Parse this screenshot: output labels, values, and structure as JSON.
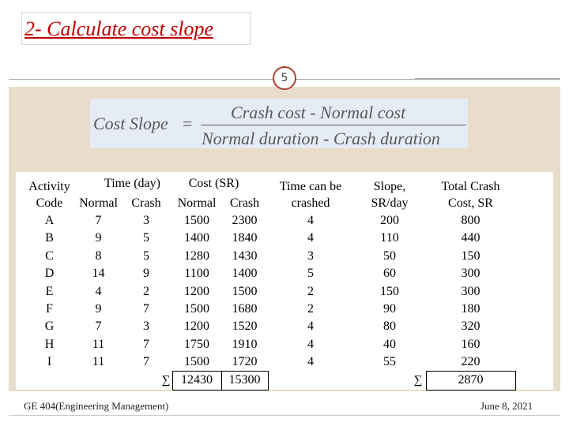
{
  "title": "2- Calculate cost slope",
  "page_number": "5",
  "formula": {
    "label": "Cost Slope",
    "equals": "=",
    "numerator": "Crash  cost - Normal  cost",
    "denominator": "Normal duration - Crash duration"
  },
  "table": {
    "header_row1": {
      "activity": "Activity",
      "time_group": "Time (day)",
      "cost_group": "Cost (SR)",
      "time_can_be": "Time can be",
      "slope": "Slope,",
      "total": "Total Crash"
    },
    "header_row2": {
      "code": "Code",
      "time_normal": "Normal",
      "time_crash": "Crash",
      "cost_normal": "Normal",
      "cost_crash": "Crash",
      "crashed": "crashed",
      "slope_unit": "SR/day",
      "total_unit": "Cost, SR"
    },
    "rows": [
      [
        "A",
        "7",
        "3",
        "1500",
        "2300",
        "4",
        "200",
        "800"
      ],
      [
        "B",
        "9",
        "5",
        "1400",
        "1840",
        "4",
        "110",
        "440"
      ],
      [
        "C",
        "8",
        "5",
        "1280",
        "1430",
        "3",
        "50",
        "150"
      ],
      [
        "D",
        "14",
        "9",
        "1100",
        "1400",
        "5",
        "60",
        "300"
      ],
      [
        "E",
        "4",
        "2",
        "1200",
        "1500",
        "2",
        "150",
        "300"
      ],
      [
        "F",
        "9",
        "7",
        "1500",
        "1680",
        "2",
        "90",
        "180"
      ],
      [
        "G",
        "7",
        "3",
        "1200",
        "1520",
        "4",
        "80",
        "320"
      ],
      [
        "H",
        "11",
        "7",
        "1750",
        "1910",
        "4",
        "40",
        "160"
      ],
      [
        "I",
        "11",
        "7",
        "1500",
        "1720",
        "4",
        "55",
        "220"
      ]
    ],
    "totals": {
      "sum_symbol": "∑",
      "normal_cost_total": "12430",
      "crash_cost_total": "15300",
      "total_crash_cost": "2870"
    }
  },
  "footer": {
    "course": "GE 404(Engineering Management)",
    "date": "June 8, 2021"
  }
}
